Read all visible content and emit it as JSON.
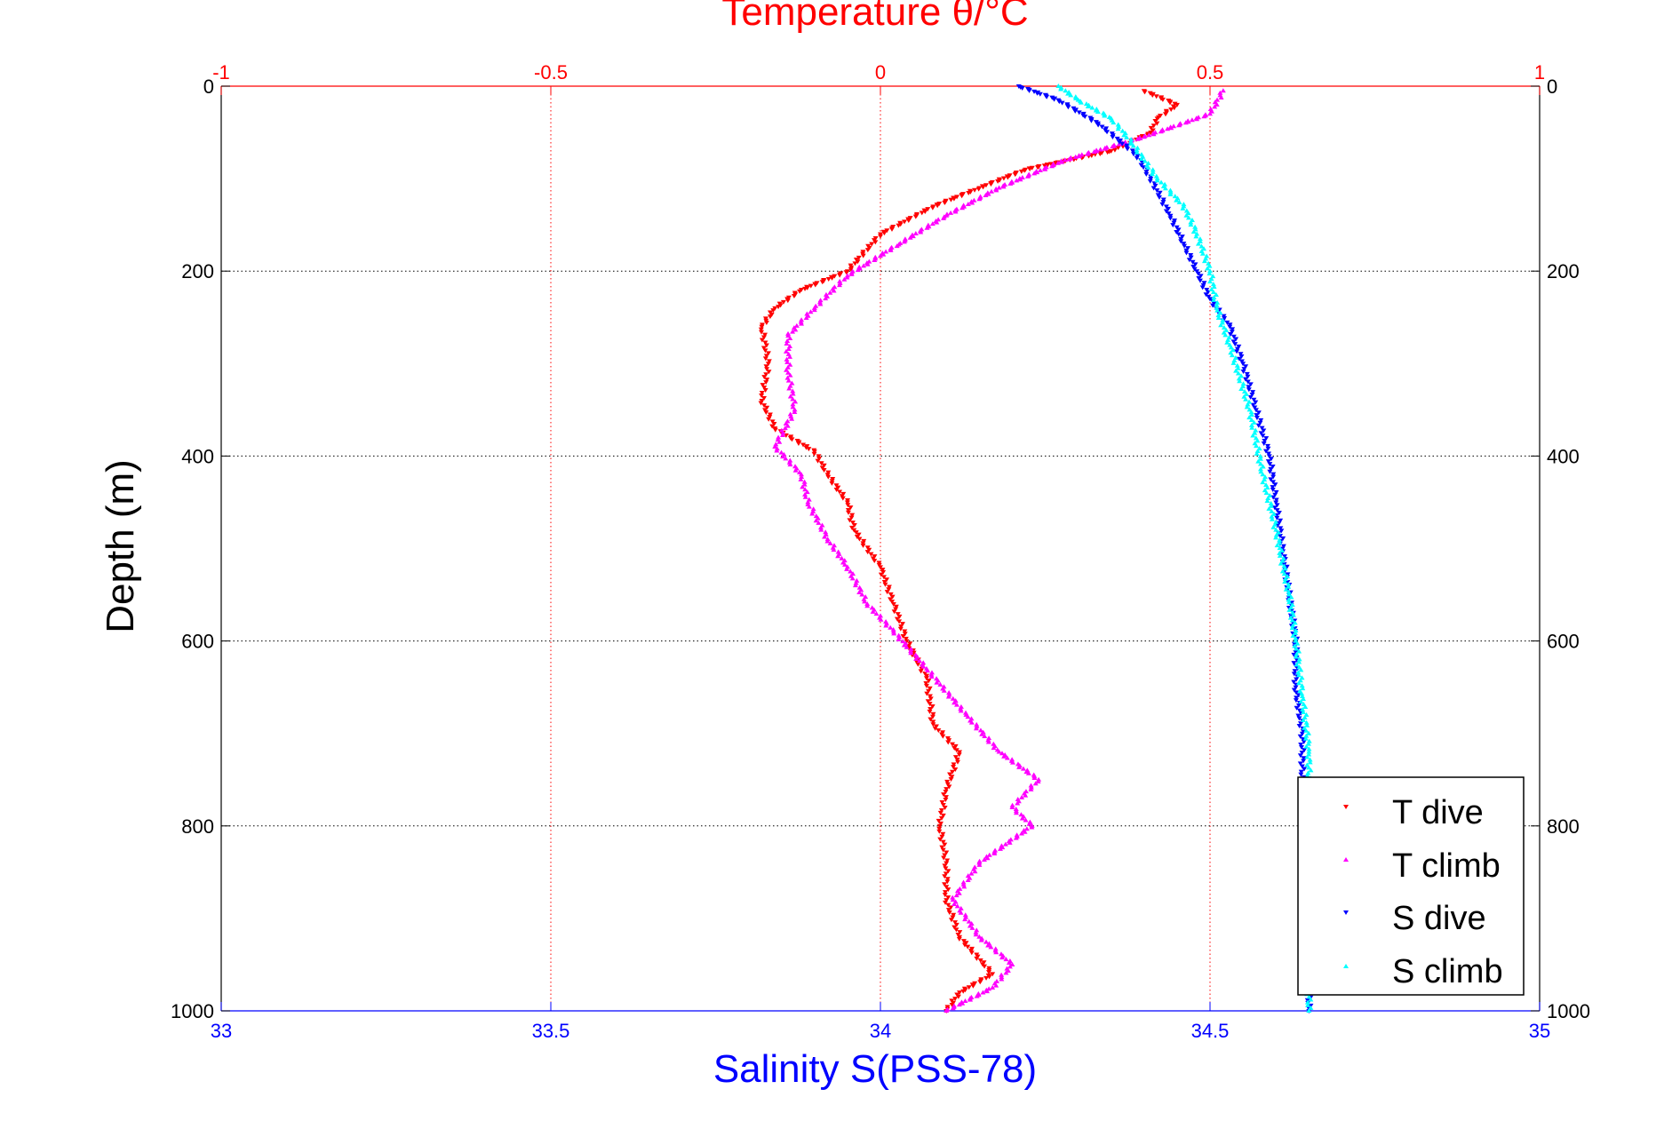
{
  "chart_data": {
    "type": "scatter",
    "title": "Temperature θ/°C",
    "xlabel_bottom": "Salinity S(PSS-78)",
    "xlabel_top": "Temperature θ/°C",
    "ylabel": "Depth (m)",
    "salinity_xlim": [
      33,
      35
    ],
    "temperature_xlim": [
      -1,
      1
    ],
    "ylim": [
      0,
      1000
    ],
    "y_reversed": true,
    "grid": true,
    "legend_location": "bottom-right",
    "salinity_ticks": [
      "33",
      "33.5",
      "34",
      "34.5",
      "35"
    ],
    "temperature_ticks": [
      "-1",
      "-0.5",
      "0",
      "0.5",
      "1"
    ],
    "depth_ticks_left": [
      "0",
      "200",
      "400",
      "600",
      "800",
      "1000"
    ],
    "depth_ticks_right": [
      "0",
      "200",
      "400",
      "600",
      "800",
      "1000"
    ],
    "colors": {
      "temperature_axis": "#ff0000",
      "salinity_axis": "#0000ff",
      "grid_temperature": "#ff0000",
      "grid_depth": "#000000"
    },
    "series": [
      {
        "name": "T dive",
        "axis": "temperature",
        "color": "#ff0000",
        "marker": "triangle-down",
        "points": [
          [
            0.4,
            5
          ],
          [
            0.45,
            20
          ],
          [
            0.42,
            35
          ],
          [
            0.41,
            50
          ],
          [
            0.35,
            70
          ],
          [
            0.22,
            90
          ],
          [
            0.15,
            110
          ],
          [
            0.08,
            130
          ],
          [
            0.0,
            160
          ],
          [
            -0.05,
            200
          ],
          [
            -0.12,
            220
          ],
          [
            -0.16,
            240
          ],
          [
            -0.18,
            260
          ],
          [
            -0.17,
            300
          ],
          [
            -0.18,
            340
          ],
          [
            -0.16,
            370
          ],
          [
            -0.1,
            395
          ],
          [
            -0.08,
            420
          ],
          [
            -0.05,
            450
          ],
          [
            -0.04,
            480
          ],
          [
            0.0,
            520
          ],
          [
            0.02,
            560
          ],
          [
            0.04,
            600
          ],
          [
            0.07,
            640
          ],
          [
            0.08,
            690
          ],
          [
            0.12,
            720
          ],
          [
            0.1,
            760
          ],
          [
            0.09,
            800
          ],
          [
            0.1,
            840
          ],
          [
            0.1,
            880
          ],
          [
            0.12,
            920
          ],
          [
            0.17,
            960
          ],
          [
            0.12,
            980
          ],
          [
            0.1,
            1000
          ]
        ]
      },
      {
        "name": "T climb",
        "axis": "temperature",
        "color": "#ff00ff",
        "marker": "triangle-up",
        "points": [
          [
            0.52,
            5
          ],
          [
            0.5,
            30
          ],
          [
            0.4,
            55
          ],
          [
            0.28,
            80
          ],
          [
            0.18,
            110
          ],
          [
            0.1,
            140
          ],
          [
            0.03,
            170
          ],
          [
            -0.05,
            205
          ],
          [
            -0.1,
            240
          ],
          [
            -0.14,
            270
          ],
          [
            -0.14,
            310
          ],
          [
            -0.13,
            350
          ],
          [
            -0.16,
            390
          ],
          [
            -0.12,
            420
          ],
          [
            -0.11,
            450
          ],
          [
            -0.08,
            490
          ],
          [
            -0.05,
            520
          ],
          [
            -0.02,
            560
          ],
          [
            0.02,
            590
          ],
          [
            0.07,
            630
          ],
          [
            0.13,
            680
          ],
          [
            0.18,
            720
          ],
          [
            0.24,
            750
          ],
          [
            0.2,
            780
          ],
          [
            0.23,
            800
          ],
          [
            0.15,
            840
          ],
          [
            0.11,
            880
          ],
          [
            0.15,
            920
          ],
          [
            0.2,
            950
          ],
          [
            0.17,
            975
          ],
          [
            0.1,
            1000
          ]
        ]
      },
      {
        "name": "S dive",
        "axis": "salinity",
        "color": "#0000ff",
        "marker": "triangle-down",
        "points": [
          [
            34.21,
            0
          ],
          [
            34.27,
            15
          ],
          [
            34.33,
            40
          ],
          [
            34.39,
            75
          ],
          [
            34.41,
            100
          ],
          [
            34.44,
            140
          ],
          [
            34.46,
            170
          ],
          [
            34.48,
            200
          ],
          [
            34.5,
            230
          ],
          [
            34.53,
            260
          ],
          [
            34.55,
            300
          ],
          [
            34.57,
            350
          ],
          [
            34.59,
            400
          ],
          [
            34.6,
            450
          ],
          [
            34.61,
            500
          ],
          [
            34.62,
            550
          ],
          [
            34.63,
            600
          ],
          [
            34.63,
            650
          ],
          [
            34.64,
            700
          ],
          [
            34.64,
            750
          ],
          [
            34.65,
            800
          ],
          [
            34.65,
            850
          ],
          [
            34.65,
            900
          ],
          [
            34.65,
            950
          ],
          [
            34.65,
            1000
          ]
        ]
      },
      {
        "name": "S climb",
        "axis": "salinity",
        "color": "#00ffff",
        "marker": "triangle-up",
        "points": [
          [
            34.27,
            0
          ],
          [
            34.3,
            15
          ],
          [
            34.35,
            35
          ],
          [
            34.38,
            60
          ],
          [
            34.42,
            100
          ],
          [
            34.46,
            130
          ],
          [
            34.48,
            160
          ],
          [
            34.5,
            200
          ],
          [
            34.51,
            240
          ],
          [
            34.53,
            280
          ],
          [
            34.56,
            350
          ],
          [
            34.58,
            420
          ],
          [
            34.6,
            480
          ],
          [
            34.62,
            550
          ],
          [
            34.63,
            600
          ],
          [
            34.64,
            660
          ],
          [
            34.65,
            720
          ],
          [
            34.65,
            780
          ],
          [
            34.64,
            820
          ],
          [
            34.65,
            870
          ],
          [
            34.65,
            920
          ],
          [
            34.65,
            970
          ],
          [
            34.65,
            1000
          ]
        ]
      }
    ]
  }
}
